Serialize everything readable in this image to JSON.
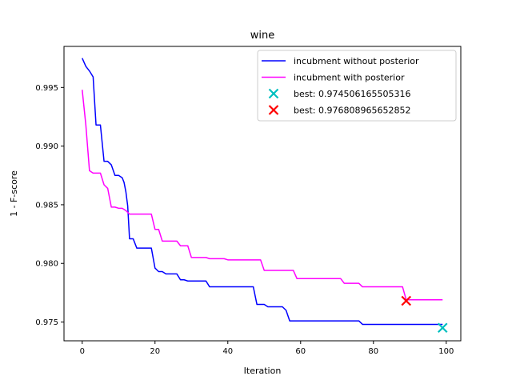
{
  "chart_data": {
    "type": "line",
    "title": "wine",
    "xlabel": "Iteration",
    "ylabel": "1 - F-score",
    "xlim": [
      -5,
      104
    ],
    "ylim": [
      0.9734,
      0.9985
    ],
    "xticks": [
      0,
      20,
      40,
      60,
      80,
      100
    ],
    "yticks": [
      0.975,
      0.98,
      0.985,
      0.99,
      0.995
    ],
    "ytick_labels": [
      "0.975",
      "0.980",
      "0.985",
      "0.990",
      "0.995"
    ],
    "grid": false,
    "legend_position": "upper right",
    "series": [
      {
        "name": "incubment without posterior",
        "color": "#0000ff",
        "points": [
          [
            0,
            0.9975
          ],
          [
            1,
            0.9968
          ],
          [
            2,
            0.9964
          ],
          [
            3,
            0.9959
          ],
          [
            3.8,
            0.9918
          ],
          [
            5,
            0.9918
          ],
          [
            6,
            0.9887
          ],
          [
            7,
            0.9887
          ],
          [
            8,
            0.9884
          ],
          [
            9,
            0.9875
          ],
          [
            10,
            0.9875
          ],
          [
            11,
            0.9873
          ],
          [
            11.5,
            0.9869
          ],
          [
            12,
            0.9861
          ],
          [
            12.5,
            0.9849
          ],
          [
            13,
            0.9821
          ],
          [
            14,
            0.9821
          ],
          [
            15,
            0.9813
          ],
          [
            19,
            0.9813
          ],
          [
            20,
            0.9796
          ],
          [
            21,
            0.9793
          ],
          [
            22,
            0.9793
          ],
          [
            23,
            0.9791
          ],
          [
            26,
            0.9791
          ],
          [
            27,
            0.9786
          ],
          [
            28,
            0.9786
          ],
          [
            29,
            0.9785
          ],
          [
            34,
            0.9785
          ],
          [
            35,
            0.978
          ],
          [
            47,
            0.978
          ],
          [
            48,
            0.9765
          ],
          [
            50,
            0.9765
          ],
          [
            51,
            0.9763
          ],
          [
            55,
            0.9763
          ],
          [
            56,
            0.976
          ],
          [
            57,
            0.9751
          ],
          [
            76,
            0.9751
          ],
          [
            77,
            0.9748
          ],
          [
            99,
            0.9748
          ]
        ]
      },
      {
        "name": "incubment with posterior",
        "color": "#ff00ff",
        "points": [
          [
            0,
            0.9948
          ],
          [
            1,
            0.9918
          ],
          [
            2,
            0.9879
          ],
          [
            3,
            0.9877
          ],
          [
            5,
            0.9877
          ],
          [
            6,
            0.9867
          ],
          [
            7,
            0.9864
          ],
          [
            8,
            0.9848
          ],
          [
            9,
            0.9848
          ],
          [
            10,
            0.9847
          ],
          [
            11,
            0.9847
          ],
          [
            12,
            0.9845
          ],
          [
            13,
            0.9842
          ],
          [
            19,
            0.9842
          ],
          [
            20,
            0.9829
          ],
          [
            21,
            0.9829
          ],
          [
            22,
            0.9819
          ],
          [
            26,
            0.9819
          ],
          [
            27,
            0.9815
          ],
          [
            29,
            0.9815
          ],
          [
            30,
            0.9805
          ],
          [
            34,
            0.9805
          ],
          [
            35,
            0.9804
          ],
          [
            39,
            0.9804
          ],
          [
            40,
            0.9803
          ],
          [
            49,
            0.9803
          ],
          [
            50,
            0.9794
          ],
          [
            58,
            0.9794
          ],
          [
            59,
            0.9787
          ],
          [
            71,
            0.9787
          ],
          [
            72,
            0.9783
          ],
          [
            76,
            0.9783
          ],
          [
            77,
            0.978
          ],
          [
            88,
            0.978
          ],
          [
            89,
            0.9769
          ],
          [
            99,
            0.9769
          ]
        ]
      }
    ],
    "best_markers": [
      {
        "label": "best: 0.974506165505316",
        "x": 99,
        "y": 0.974506165505316,
        "color": "#00bfbf"
      },
      {
        "label": "best: 0.976808965652852",
        "x": 89,
        "y": 0.976808965652852,
        "color": "#ff0000"
      }
    ]
  }
}
